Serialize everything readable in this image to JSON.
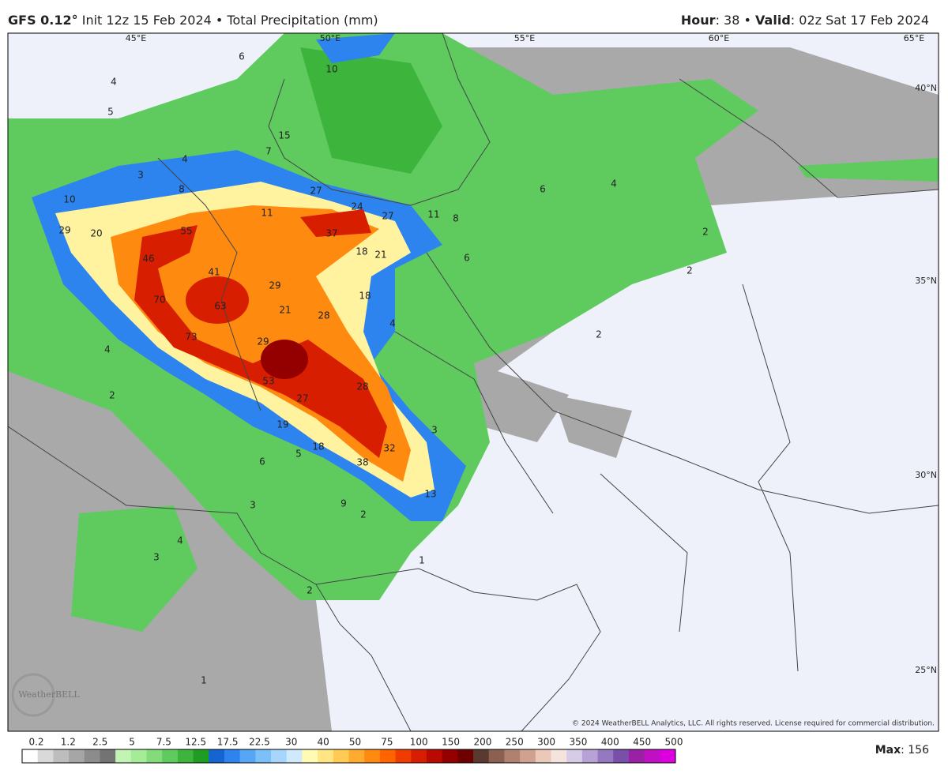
{
  "header": {
    "model": "GFS 0.12°",
    "init": "Init 12z 15 Feb 2024",
    "separator": "•",
    "product": "Total Precipitation (mm)",
    "hour_label": "Hour",
    "hour": ": 38",
    "valid_label": "Valid",
    "valid": ": 02z Sat 17 Feb 2024"
  },
  "map": {
    "lon_labels": [
      "45°E",
      "50°E",
      "55°E",
      "60°E",
      "65°E"
    ],
    "lat_labels": [
      "40°N",
      "35°N",
      "30°N",
      "25°N"
    ],
    "precip_labels": [
      10,
      15,
      7,
      4,
      8,
      3,
      27,
      10,
      29,
      20,
      55,
      46,
      11,
      24,
      27,
      11,
      8,
      37,
      18,
      21,
      6,
      6,
      4,
      2,
      2,
      41,
      29,
      70,
      63,
      21,
      28,
      18,
      4,
      2,
      73,
      29,
      4,
      53,
      28,
      27,
      19,
      3,
      18,
      32,
      38,
      6,
      5,
      13,
      3,
      9,
      2,
      4,
      3,
      1,
      2,
      1,
      2,
      5,
      4,
      6
    ],
    "logo": "WeatherBELL",
    "copyright": "© 2024 WeatherBELL Analytics, LLC. All rights reserved. License required for commercial distribution."
  },
  "legend": {
    "ticks": [
      "0.2",
      "1.2",
      "2.5",
      "5",
      "7.5",
      "12.5",
      "17.5",
      "22.5",
      "30",
      "40",
      "50",
      "75",
      "100",
      "150",
      "200",
      "250",
      "300",
      "350",
      "400",
      "450",
      "500"
    ],
    "colors": [
      "#ffffff",
      "#d9d9d9",
      "#bdbdbd",
      "#a6a6a6",
      "#8c8c8c",
      "#737373",
      "#c2f5b4",
      "#a5eb98",
      "#82dc7c",
      "#5fcb5f",
      "#3db53d",
      "#1f9c22",
      "#1464d2",
      "#2d84ee",
      "#55a7f5",
      "#7cc0f8",
      "#a6d6fb",
      "#cfeafc",
      "#fffab4",
      "#ffe682",
      "#ffcb55",
      "#ffab30",
      "#ff8a10",
      "#ff6400",
      "#f03c00",
      "#d81e00",
      "#b80a00",
      "#940000",
      "#6e0000",
      "#5a3a30",
      "#8c6050",
      "#b08070",
      "#d0a090",
      "#ecc8b8",
      "#f4e4dc",
      "#d6cce8",
      "#b6a2d4",
      "#9478c0",
      "#7850aa",
      "#9a20a6",
      "#c010c4",
      "#dc00e0"
    ],
    "max_label": "Max",
    "max": ": 156"
  }
}
